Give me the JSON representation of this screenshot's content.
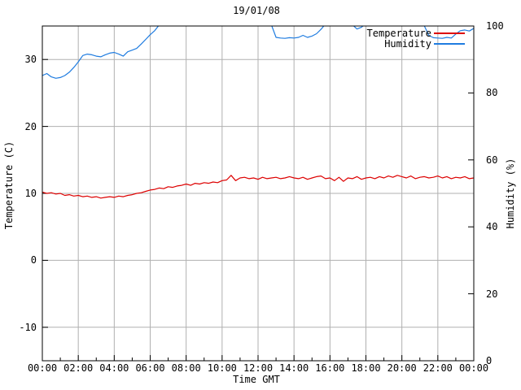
{
  "title": "19/01/08",
  "axes": {
    "x": {
      "label": "Time GMT",
      "tick_labels": [
        "00:00",
        "02:00",
        "04:00",
        "06:00",
        "08:00",
        "10:00",
        "12:00",
        "14:00",
        "16:00",
        "18:00",
        "20:00",
        "22:00",
        "00:00"
      ],
      "tick_values": [
        0,
        2,
        4,
        6,
        8,
        10,
        12,
        14,
        16,
        18,
        20,
        22,
        24
      ],
      "minor_tick_values": [
        1,
        3,
        5,
        7,
        9,
        11,
        13,
        15,
        17,
        19,
        21,
        23
      ],
      "range_hours": [
        0,
        24
      ]
    },
    "y_left": {
      "label": "Temperature (C)",
      "tick_labels": [
        "-10",
        "0",
        "10",
        "20",
        "30"
      ],
      "tick_values": [
        -10,
        0,
        10,
        20,
        30
      ],
      "range": [
        -15,
        35
      ]
    },
    "y_right": {
      "label": "Humidity (%)",
      "tick_labels": [
        "0",
        "20",
        "40",
        "60",
        "80",
        "100"
      ],
      "tick_values": [
        0,
        20,
        40,
        60,
        80,
        100
      ],
      "range": [
        0,
        100
      ]
    }
  },
  "legend": {
    "position": "top-right",
    "items": [
      {
        "label": "Temperature",
        "color": "#dd0000"
      },
      {
        "label": "Humidity",
        "color": "#1f7ce0"
      }
    ]
  },
  "colors": {
    "temperature": "#dd0000",
    "humidity": "#1f7ce0",
    "grid": "#b0b0b0",
    "border": "#000000",
    "background": "#ffffff",
    "text": "#000000"
  },
  "chart_data": {
    "type": "line",
    "title": "19/01/08",
    "xlabel": "Time GMT",
    "x_start_hours": 0,
    "x_step_hours": 0.25,
    "xlim_hours": [
      0,
      24
    ],
    "ylim_left": [
      -15,
      35
    ],
    "ylim_right": [
      0,
      100
    ],
    "grid": true,
    "legend_position": "top-right",
    "series": [
      {
        "name": "Temperature",
        "axis": "left",
        "units": "C",
        "color": "#dd0000",
        "values": [
          10.2,
          10.0,
          10.1,
          9.9,
          10.0,
          9.7,
          9.8,
          9.6,
          9.7,
          9.5,
          9.6,
          9.4,
          9.5,
          9.3,
          9.4,
          9.5,
          9.4,
          9.6,
          9.5,
          9.7,
          9.8,
          10.0,
          10.1,
          10.3,
          10.5,
          10.6,
          10.8,
          10.7,
          11.0,
          10.9,
          11.1,
          11.2,
          11.4,
          11.2,
          11.5,
          11.4,
          11.6,
          11.5,
          11.7,
          11.6,
          11.9,
          12.0,
          12.7,
          11.9,
          12.3,
          12.4,
          12.2,
          12.3,
          12.1,
          12.4,
          12.2,
          12.3,
          12.4,
          12.2,
          12.3,
          12.5,
          12.3,
          12.2,
          12.4,
          12.1,
          12.3,
          12.5,
          12.6,
          12.2,
          12.3,
          11.9,
          12.4,
          11.8,
          12.3,
          12.2,
          12.5,
          12.1,
          12.3,
          12.4,
          12.2,
          12.5,
          12.3,
          12.6,
          12.4,
          12.7,
          12.5,
          12.3,
          12.6,
          12.2,
          12.4,
          12.5,
          12.3,
          12.4,
          12.6,
          12.3,
          12.5,
          12.2,
          12.4,
          12.3,
          12.5,
          12.2,
          12.3
        ]
      },
      {
        "name": "Humidity",
        "axis": "right",
        "units": "%",
        "color": "#1f7ce0",
        "values": [
          85.2,
          85.8,
          84.8,
          84.4,
          84.6,
          85.2,
          86.2,
          87.6,
          89.3,
          91.2,
          91.6,
          91.4,
          91.0,
          90.8,
          91.4,
          91.9,
          92.1,
          91.6,
          91.0,
          92.3,
          92.8,
          93.3,
          94.6,
          96.0,
          97.4,
          98.6,
          100.3,
          101.2,
          101.5,
          101.5,
          101.5,
          101.5,
          101.5,
          101.5,
          101.5,
          101.5,
          101.5,
          101.5,
          101.5,
          101.5,
          101.5,
          101.5,
          101.5,
          101.5,
          101.5,
          101.5,
          101.5,
          101.5,
          101.5,
          101.5,
          101.5,
          100.2,
          96.6,
          96.4,
          96.3,
          96.5,
          96.4,
          96.6,
          97.2,
          96.6,
          97.0,
          97.7,
          99.0,
          100.6,
          101.5,
          101.5,
          101.5,
          101.5,
          101.5,
          100.4,
          99.1,
          99.6,
          100.8,
          101.5,
          101.5,
          101.5,
          101.5,
          101.5,
          101.5,
          101.5,
          101.5,
          101.5,
          101.5,
          101.5,
          101.5,
          100.0,
          97.2,
          96.5,
          96.4,
          96.3,
          96.6,
          96.4,
          97.6,
          98.6,
          98.8,
          98.5,
          99.3
        ]
      }
    ]
  }
}
